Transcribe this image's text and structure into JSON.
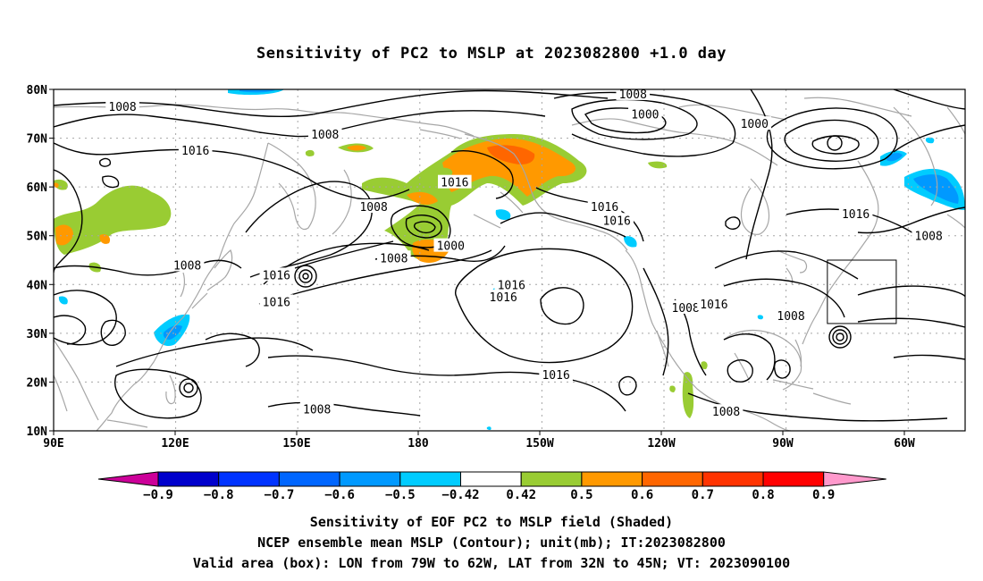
{
  "title": "Sensitivity of PC2 to MSLP at 2023082800 +1.0 day",
  "map": {
    "lat_labels": [
      "80N",
      "70N",
      "60N",
      "50N",
      "40N",
      "30N",
      "20N",
      "10N"
    ],
    "lon_labels": [
      "90E",
      "120E",
      "150E",
      "180",
      "150W",
      "120W",
      "90W",
      "60W"
    ],
    "contour_labels": [
      {
        "text": "1008",
        "lon": 233,
        "lat": 79.1
      },
      {
        "text": "1008",
        "lon": 107,
        "lat": 76.5
      },
      {
        "text": "1008",
        "lon": 157,
        "lat": 70.8
      },
      {
        "text": "1000",
        "lon": 236,
        "lat": 75
      },
      {
        "text": "1000",
        "lon": 263,
        "lat": 73
      },
      {
        "text": "1016",
        "lon": 125,
        "lat": 67.5
      },
      {
        "text": "1016",
        "lon": 189,
        "lat": 61
      },
      {
        "text": "1008",
        "lon": 169,
        "lat": 56
      },
      {
        "text": "1016",
        "lon": 226,
        "lat": 56
      },
      {
        "text": "1016",
        "lon": 229,
        "lat": 53.2
      },
      {
        "text": "1000",
        "lon": 188,
        "lat": 48
      },
      {
        "text": "1008",
        "lon": 174,
        "lat": 45.5
      },
      {
        "text": "1008",
        "lon": 123,
        "lat": 44
      },
      {
        "text": "1016",
        "lon": 145,
        "lat": 42
      },
      {
        "text": "1016",
        "lon": 145,
        "lat": 36.5
      },
      {
        "text": "1016",
        "lon": 203,
        "lat": 40
      },
      {
        "text": "1016",
        "lon": 201,
        "lat": 37.5
      },
      {
        "text": "1008",
        "lon": 246,
        "lat": 35.3
      },
      {
        "text": "1016",
        "lon": 253,
        "lat": 36
      },
      {
        "text": "1008",
        "lon": 272,
        "lat": 33.6
      },
      {
        "text": "1008",
        "lon": 306,
        "lat": 50
      },
      {
        "text": "1016",
        "lon": 288,
        "lat": 54.5
      },
      {
        "text": "1016",
        "lon": 214,
        "lat": 21.5
      },
      {
        "text": "1008",
        "lon": 155,
        "lat": 14.5
      },
      {
        "text": "1008",
        "lon": 256,
        "lat": 14
      }
    ],
    "valid_box": {
      "lon_min": 281,
      "lon_max": 298,
      "lat_min": 32,
      "lat_max": 45
    },
    "shading_colors": {
      "green": "#99cc33",
      "orange": "#ff9900",
      "darkorange": "#ff6600",
      "cyan": "#00ccff",
      "blue": "#0099ff",
      "white": "#ffffff"
    }
  },
  "colorbar": {
    "labels": [
      "−0.9",
      "−0.8",
      "−0.7",
      "−0.6",
      "−0.5",
      "−0.42",
      "0.42",
      "0.5",
      "0.6",
      "0.7",
      "0.8",
      "0.9"
    ],
    "colors": [
      "#0000cc",
      "#0033ff",
      "#0066ff",
      "#0099ff",
      "#00ccff",
      "#ffffff",
      "#99cc33",
      "#ff9900",
      "#ff6600",
      "#ff3300",
      "#ff0000"
    ],
    "low_end_color": "#cc0099",
    "high_end_color": "#ff99cc"
  },
  "caption": {
    "line1": "Sensitivity of EOF PC2 to MSLP field (Shaded)",
    "line2": "NCEP ensemble mean MSLP (Contour); unit(mb); IT:2023082800",
    "line3": "Valid area (box): LON from 79W to 62W, LAT from 32N to 45N; VT: 2023090100"
  }
}
